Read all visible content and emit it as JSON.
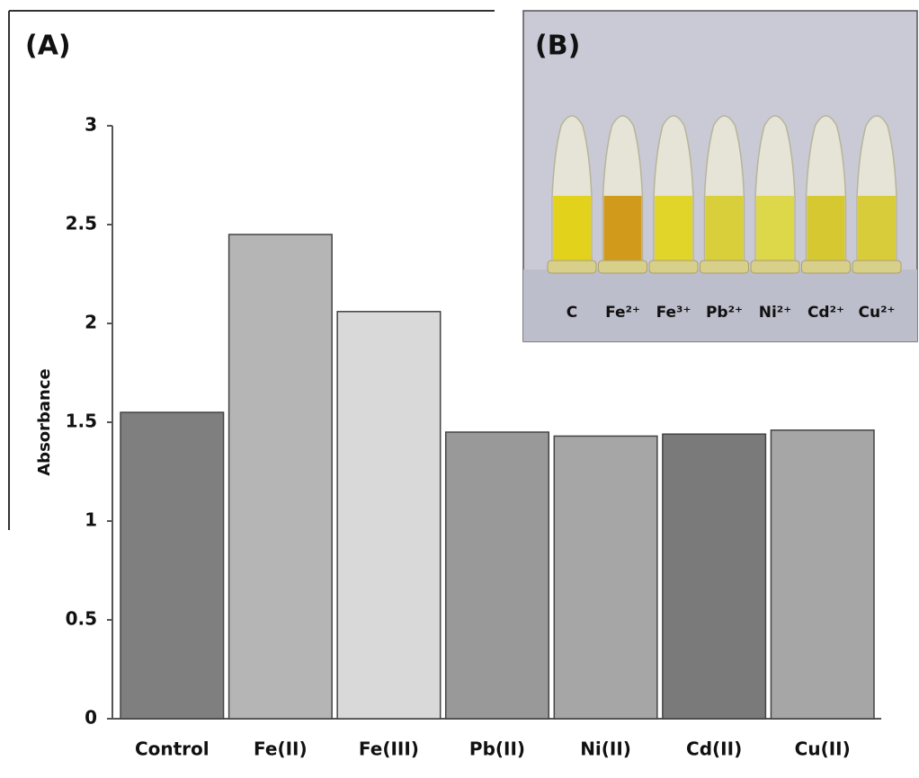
{
  "chart_data": {
    "type": "bar",
    "panel_label": "(A)",
    "y_label": "Absorbance",
    "categories": [
      "Control",
      "Fe(II)",
      "Fe(III)",
      "Pb(II)",
      "Ni(II)",
      "Cd(II)",
      "Cu(II)"
    ],
    "values": [
      1.55,
      2.45,
      2.06,
      1.45,
      1.43,
      1.44,
      1.46
    ],
    "colors": [
      "#7f7f7f",
      "#b5b5b5",
      "#d9d9d9",
      "#999999",
      "#a6a6a6",
      "#7a7a7a",
      "#a6a6a6"
    ],
    "ylim": [
      0,
      3
    ],
    "yticks": [
      0,
      0.5,
      1,
      1.5,
      2,
      2.5,
      3
    ],
    "grid": false
  },
  "inset": {
    "panel_label": "(B)",
    "tube_labels": [
      "C",
      "Fe²⁺",
      "Fe³⁺",
      "Pb²⁺",
      "Ni²⁺",
      "Cd²⁺",
      "Cu²⁺"
    ]
  }
}
